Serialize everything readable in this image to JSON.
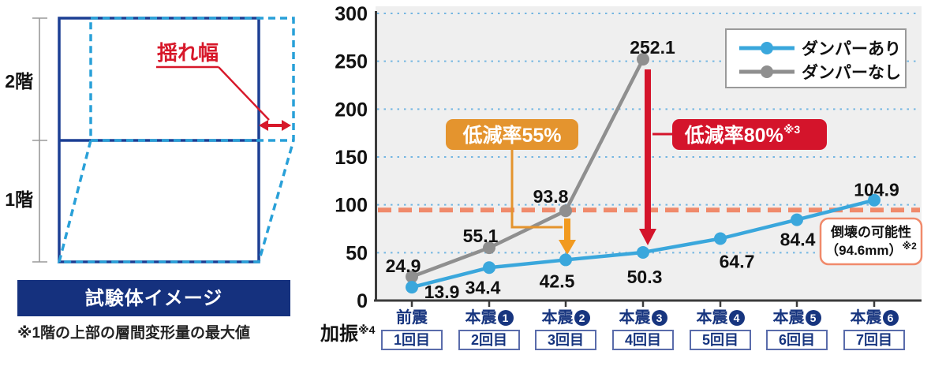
{
  "left_panel": {
    "floor2_label": "2階",
    "floor1_label": "1階",
    "sway_label": "揺れ幅",
    "caption": "試験体イメージ",
    "footnote": "※1階の上部の層間変形量の最大値",
    "colors": {
      "frame_navy": "#1c3f94",
      "deformed_blue": "#29a0d8",
      "accent_red": "#d7182a",
      "banner_navy": "#15317e"
    }
  },
  "chart_data": {
    "type": "line",
    "title": "",
    "xlabel": "",
    "ylabel": "",
    "ylim": [
      0,
      300
    ],
    "yticks": [
      0,
      50,
      100,
      150,
      200,
      250,
      300
    ],
    "grid": "horizontal-dotted-blue",
    "legend_position": "top-right",
    "plot_background": "#efefef",
    "gridline_color": "#74b6e2",
    "categories": [
      {
        "name": "前震",
        "circled_num": null,
        "trial": "1回目"
      },
      {
        "name": "本震",
        "circled_num": "1",
        "trial": "2回目"
      },
      {
        "name": "本震",
        "circled_num": "2",
        "trial": "3回目"
      },
      {
        "name": "本震",
        "circled_num": "3",
        "trial": "4回目"
      },
      {
        "name": "本震",
        "circled_num": "4",
        "trial": "5回目"
      },
      {
        "name": "本震",
        "circled_num": "5",
        "trial": "6回目"
      },
      {
        "name": "本震",
        "circled_num": "6",
        "trial": "7回目"
      }
    ],
    "series": [
      {
        "name": "ダンパーあり",
        "color": "#3aa7dc",
        "values": [
          13.9,
          34.4,
          42.5,
          50.3,
          64.7,
          84.4,
          104.9
        ]
      },
      {
        "name": "ダンパーなし",
        "color": "#8f8f8f",
        "values": [
          24.9,
          55.1,
          93.8,
          252.1
        ]
      }
    ],
    "threshold": {
      "value": 94.6,
      "color": "#f08a6b",
      "note_line1": "倒壊の可能性",
      "note_line2": "（94.6mm）",
      "note_sup": "※2"
    },
    "annotations": [
      {
        "text": "低減率55%",
        "sup": "",
        "color": "#e4942e",
        "arrow_color": "#f19a20",
        "at_category": 2
      },
      {
        "text": "低減率80%",
        "sup": "※3",
        "color": "#d4142b",
        "arrow_color": "#d4142b",
        "at_category": 3
      }
    ],
    "xaxis_caption": "加振",
    "xaxis_caption_sup": "※4"
  }
}
